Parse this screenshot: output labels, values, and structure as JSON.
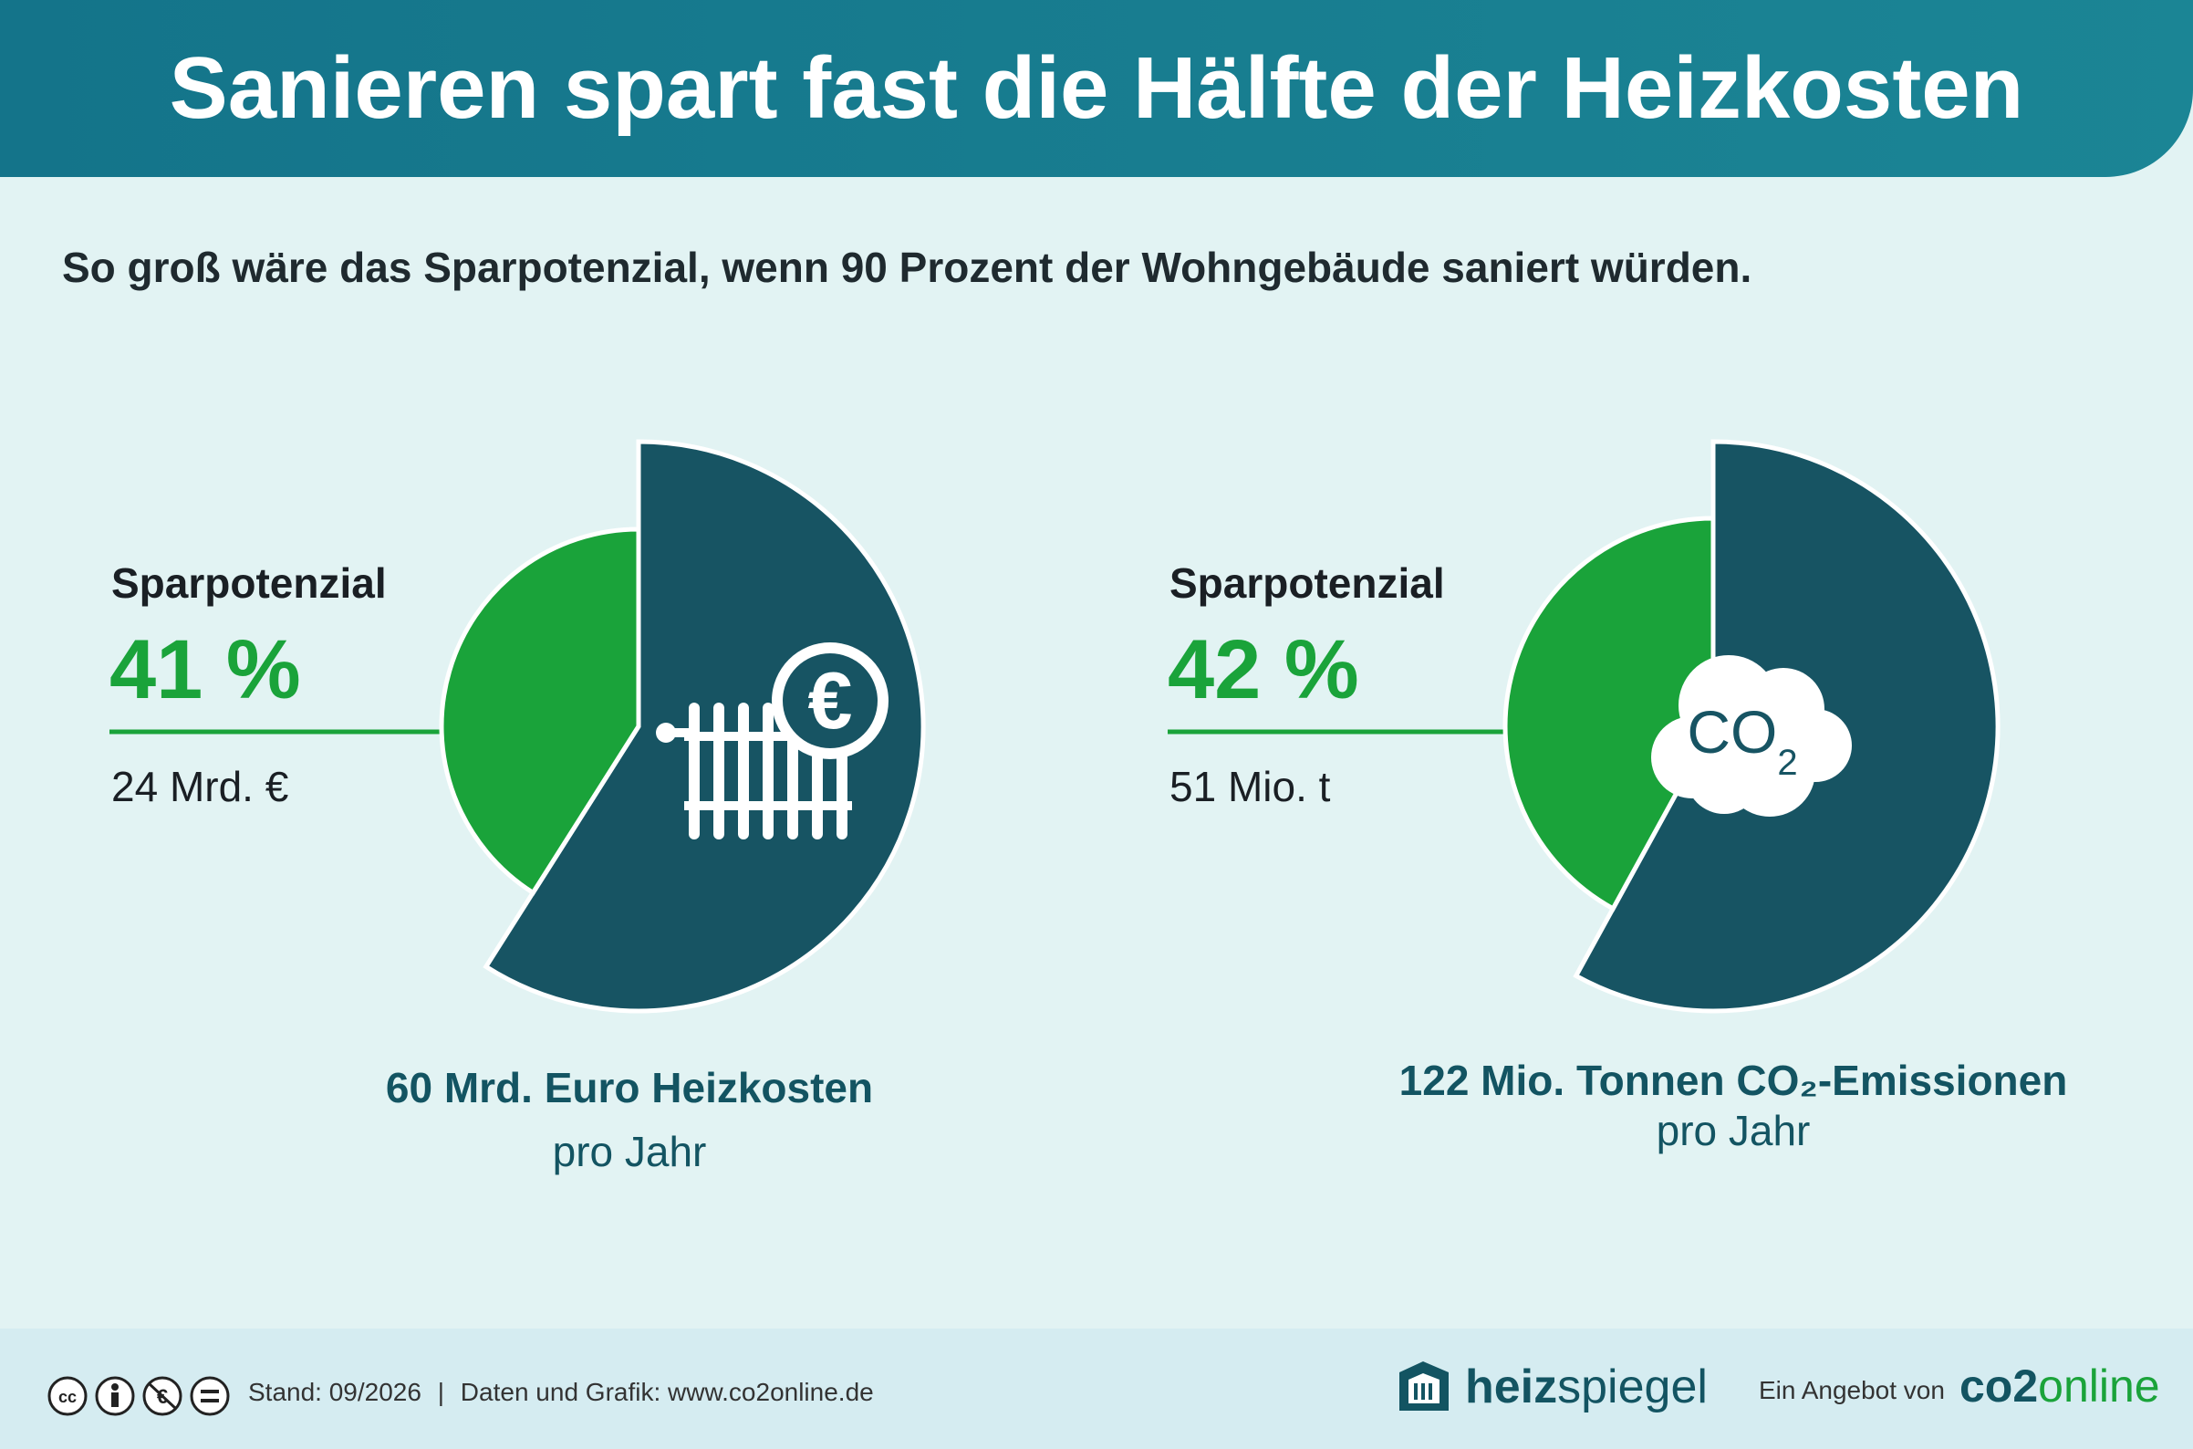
{
  "header": {
    "title": "Sanieren spart fast die Hälfte der Heizkosten"
  },
  "subtitle": "So groß wäre das Sparpotenzial, wenn 90 Prozent der Wohngebäude saniert würden.",
  "colors": {
    "header": "#14748a",
    "dark": "#175463",
    "green": "#1aa33a",
    "background": "#e2f3f3"
  },
  "chart_data": [
    {
      "type": "pie",
      "label_heading": "Sparpotenzial",
      "percent_label": "41 %",
      "percent": 41,
      "value_label": "24 Mrd. €",
      "total_label": "60 Mrd. Euro Heizkosten",
      "total_sub": "pro Jahr",
      "icon": "radiator-euro-icon"
    },
    {
      "type": "pie",
      "label_heading": "Sparpotenzial",
      "percent_label": "42 %",
      "percent": 42,
      "value_label": "51 Mio. t",
      "total_label": "122 Mio. Tonnen CO₂-Emissionen",
      "total_sub": "pro Jahr",
      "icon": "co2-cloud-icon",
      "icon_text": "CO",
      "icon_sub": "2"
    }
  ],
  "footer": {
    "license_icons": [
      "cc-icon",
      "by-icon",
      "nc-eu-icon",
      "nd-icon"
    ],
    "stand": "Stand: 09/2026",
    "separator": "|",
    "source": "Daten und Grafik: www.co2online.de",
    "brand_bold": "heiz",
    "brand_light": "spiegel",
    "angebot": "Ein Angebot von",
    "co2_bold": "co2",
    "co2_green": "online"
  }
}
